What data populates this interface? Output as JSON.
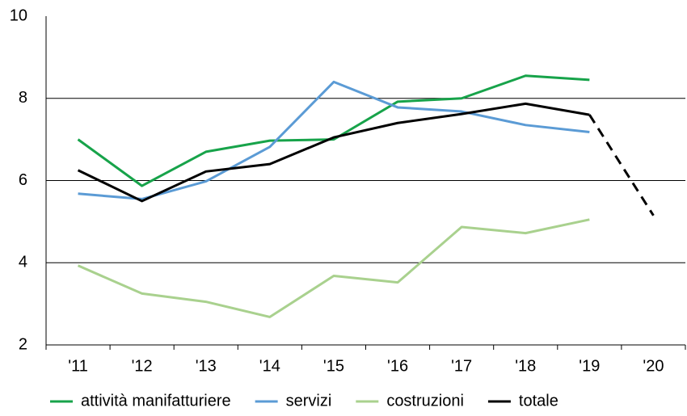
{
  "chart_data": {
    "type": "line",
    "categories": [
      "'11",
      "'12",
      "'13",
      "'14",
      "'15",
      "'16",
      "'17",
      "'18",
      "'19",
      "'20"
    ],
    "series": [
      {
        "name": "attività manifatturiere",
        "color": "#17a34a",
        "values": [
          7.0,
          5.87,
          6.7,
          6.97,
          7.0,
          7.92,
          8.0,
          8.55,
          8.45,
          null
        ]
      },
      {
        "name": "servizi",
        "color": "#5b9bd5",
        "values": [
          5.68,
          5.55,
          5.98,
          6.82,
          8.4,
          7.78,
          7.68,
          7.35,
          7.18,
          null
        ]
      },
      {
        "name": "costruzioni",
        "color": "#a9d18e",
        "values": [
          3.93,
          3.25,
          3.05,
          2.68,
          3.68,
          3.52,
          4.87,
          4.72,
          5.05,
          null
        ]
      },
      {
        "name": "totale",
        "color": "#000000",
        "values": [
          6.25,
          5.5,
          6.22,
          6.4,
          7.05,
          7.4,
          7.62,
          7.87,
          7.6,
          5.15
        ],
        "dashed_from_index": 8
      }
    ],
    "ylim": [
      2,
      10
    ],
    "yticks": [
      2,
      4,
      6,
      8,
      10
    ],
    "grid": true,
    "legend": "bottom"
  }
}
